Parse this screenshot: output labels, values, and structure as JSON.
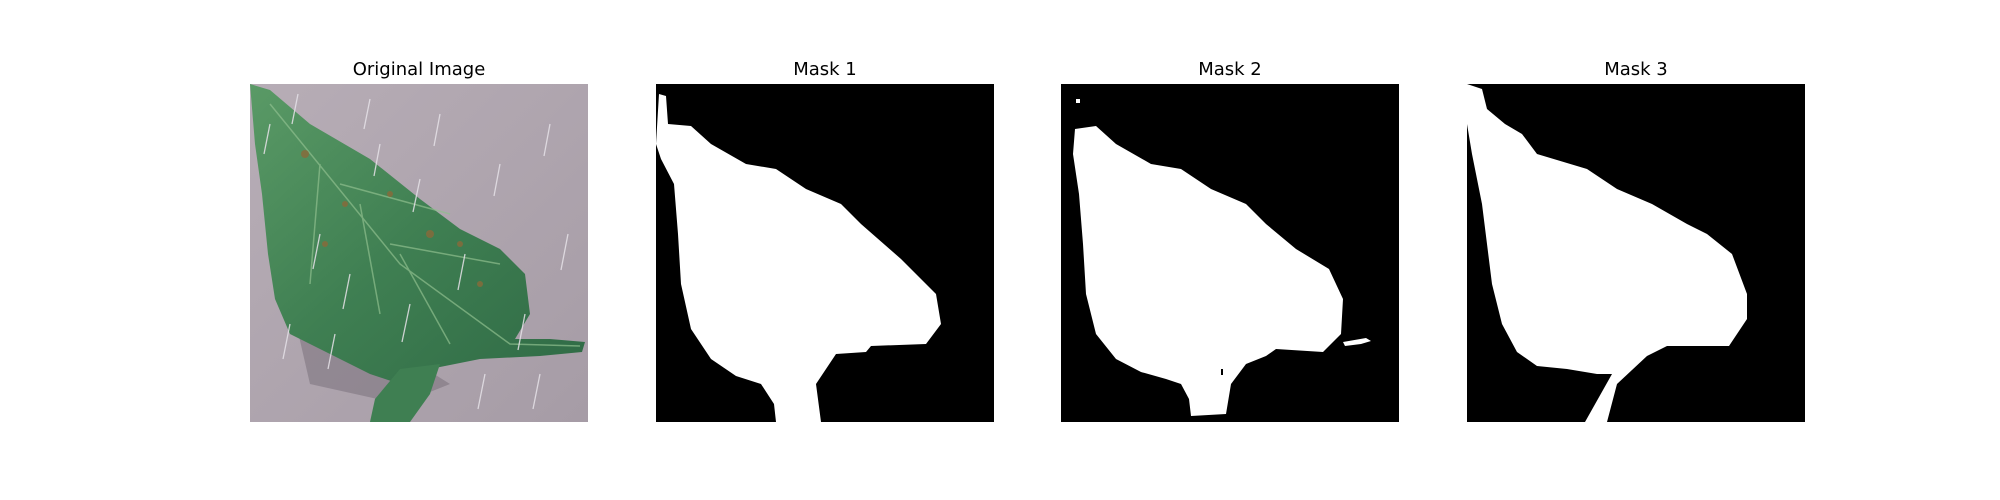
{
  "panels": [
    {
      "title": "Original Image"
    },
    {
      "title": "Mask 1"
    },
    {
      "title": "Mask 2"
    },
    {
      "title": "Mask 3"
    }
  ],
  "colors": {
    "background": "#ffffff",
    "mask_background": "#000000",
    "mask_foreground": "#ffffff",
    "leaf_green": "#4a8a5a",
    "backdrop_gray": "#aea4ad"
  }
}
